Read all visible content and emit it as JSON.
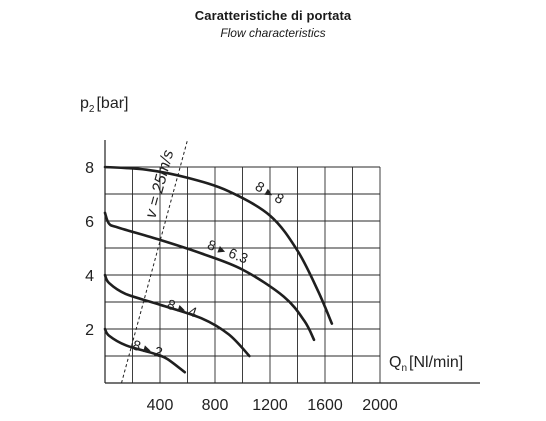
{
  "chart_data": {
    "type": "line",
    "title": "Caratteristiche di portata",
    "subtitle": "Flow characteristics",
    "xlabel_main": "Q",
    "xlabel_sub": "n",
    "xlabel_unit": "[Nl/min]",
    "ylabel_main": "p",
    "ylabel_sub": "2",
    "ylabel_unit": "[bar]",
    "xlim": [
      0,
      2000
    ],
    "ylim": [
      0,
      9
    ],
    "x_ticks": [
      400,
      800,
      1200,
      1600,
      2000
    ],
    "x_tick_labels": [
      "400",
      "800",
      "1200",
      "1600",
      "2000"
    ],
    "y_ticks": [
      2,
      4,
      6,
      8
    ],
    "y_tick_labels": [
      "2",
      "4",
      "6",
      "8"
    ],
    "grid": true,
    "grid_x_step": 200,
    "grid_y_step": 1,
    "velocity_line": {
      "label": "v = 25m/s",
      "points": [
        [
          120,
          0
        ],
        [
          600,
          9
        ]
      ]
    },
    "series": [
      {
        "name": "8 ▸ 8",
        "label_at": [
          1180,
          6.9
        ],
        "points": [
          [
            0,
            8
          ],
          [
            300,
            7.9
          ],
          [
            600,
            7.6
          ],
          [
            900,
            7.1
          ],
          [
            1200,
            6.2
          ],
          [
            1400,
            4.9
          ],
          [
            1550,
            3.4
          ],
          [
            1650,
            2.2
          ]
        ]
      },
      {
        "name": "8 ▸ 6.3",
        "label_at": [
          880,
          4.7
        ],
        "points": [
          [
            0,
            6.3
          ],
          [
            30,
            5.9
          ],
          [
            100,
            5.75
          ],
          [
            400,
            5.3
          ],
          [
            700,
            4.8
          ],
          [
            1000,
            4.2
          ],
          [
            1300,
            3.2
          ],
          [
            1450,
            2.3
          ],
          [
            1520,
            1.6
          ]
        ]
      },
      {
        "name": "8 ▸ 4",
        "label_at": [
          550,
          2.6
        ],
        "points": [
          [
            0,
            4
          ],
          [
            30,
            3.7
          ],
          [
            150,
            3.3
          ],
          [
            400,
            2.9
          ],
          [
            700,
            2.4
          ],
          [
            900,
            1.8
          ],
          [
            1050,
            1.0
          ]
        ]
      },
      {
        "name": "8 ▸ 2",
        "label_at": [
          300,
          1.1
        ],
        "points": [
          [
            0,
            2
          ],
          [
            30,
            1.75
          ],
          [
            150,
            1.4
          ],
          [
            350,
            1.1
          ],
          [
            450,
            0.9
          ],
          [
            580,
            0.4
          ]
        ]
      }
    ],
    "colors": {
      "curve": "#1f1f1f",
      "grid": "#2a2a2a",
      "axis": "#222222",
      "text": "#222222"
    }
  }
}
